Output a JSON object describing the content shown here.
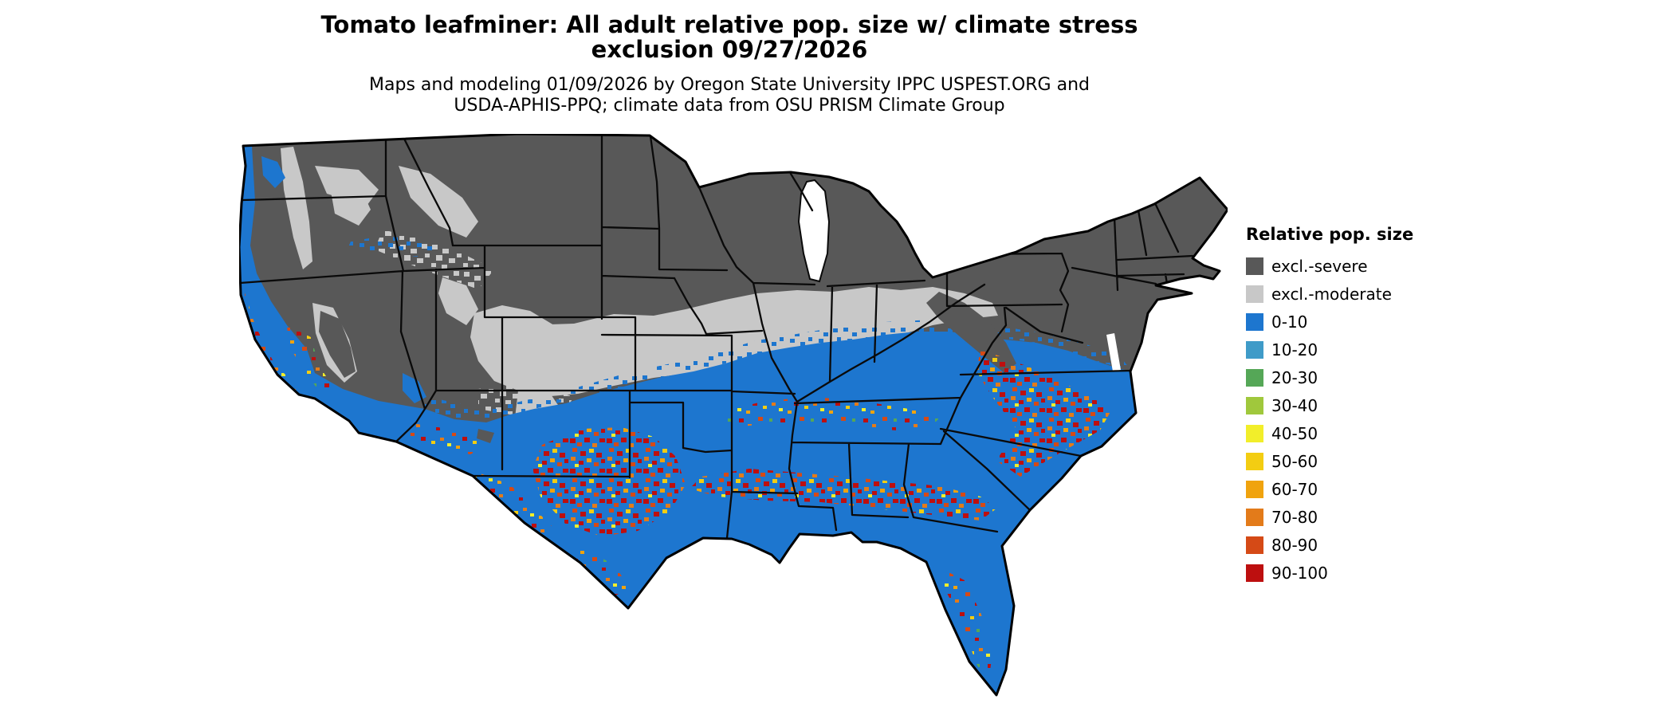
{
  "page": {
    "background": "#ffffff"
  },
  "title": {
    "line1": "Tomato leafminer: All adult relative pop. size w/ climate stress",
    "line2": "exclusion 09/27/2026"
  },
  "subtitle": {
    "line1": "Maps and modeling 01/09/2026 by Oregon State University IPPC USPEST.ORG and",
    "line2": "USDA-APHIS-PPQ; climate data from OSU PRISM Climate Group"
  },
  "legend": {
    "title": "Relative pop. size",
    "items": [
      {
        "label": "excl.-severe",
        "color": "#585858"
      },
      {
        "label": "excl.-moderate",
        "color": "#c8c8c8"
      },
      {
        "label": "0-10",
        "color": "#1d76cf"
      },
      {
        "label": "10-20",
        "color": "#3f9bc8"
      },
      {
        "label": "20-30",
        "color": "#55a757"
      },
      {
        "label": "30-40",
        "color": "#a0c83c"
      },
      {
        "label": "40-50",
        "color": "#f2ee2a"
      },
      {
        "label": "50-60",
        "color": "#f3cd12"
      },
      {
        "label": "60-70",
        "color": "#f0a30e"
      },
      {
        "label": "70-80",
        "color": "#e37b1a"
      },
      {
        "label": "80-90",
        "color": "#d54a16"
      },
      {
        "label": "90-100",
        "color": "#bd0f0f"
      }
    ]
  },
  "map": {
    "area": "Continental United States (lower 48 states)",
    "style": "raster model output shaded by relative population size with black state boundaries",
    "boundary_color": "#000000",
    "surrounding_color": "#ffffff"
  }
}
